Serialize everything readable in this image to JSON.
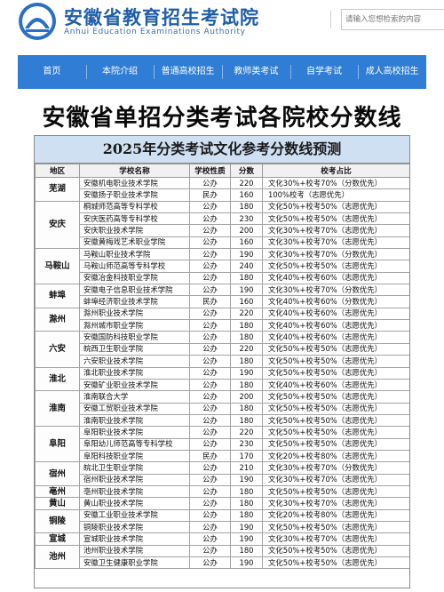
{
  "site": {
    "title": "安徽省教育招生考试院",
    "subtitle": "Anhui Education Examinations Authority",
    "search_placeholder": "请输入您想检索的内容"
  },
  "nav": [
    "首页",
    "本院介绍",
    "普通高校招生",
    "教师类考试",
    "自学考试",
    "成人高校招生"
  ],
  "headline": "安徽省单招分类考试各院校分数线",
  "table": {
    "title": "2025年分类考试文化参考分数线预测",
    "headers": [
      "地区",
      "学校名称",
      "学校性质",
      "分数",
      "校考占比"
    ],
    "regions": [
      {
        "name": "芜湖",
        "rows": [
          [
            "安徽机电职业技术学院",
            "公办",
            "220",
            "文化30%+校考70%（分数优先）"
          ],
          [
            "安徽扬子职业技术学院",
            "民办",
            "160",
            "100%校考（志愿优先）"
          ]
        ]
      },
      {
        "name": "安庆",
        "rows": [
          [
            "桐城师范高等专科学校",
            "公办",
            "180",
            "文化50%+校考50%（志愿优先）"
          ],
          [
            "安庆医药高等专科学校",
            "公办",
            "230",
            "文化50%+校考50%（志愿优先）"
          ],
          [
            "安庆职业技术学院",
            "公办",
            "200",
            "文化30%+校考70%（志愿优先）"
          ],
          [
            "安徽黄梅戏艺术职业学院",
            "公办",
            "160",
            "文化30%+校考70%（志愿优先）"
          ]
        ]
      },
      {
        "name": "马鞍山",
        "rows": [
          [
            "马鞍山职业技术学院",
            "公办",
            "190",
            "文化30%+校考70%（分数优先）"
          ],
          [
            "马鞍山师范高等专科学校",
            "公办",
            "240",
            "文化50%+校考50%（志愿优先）"
          ],
          [
            "安徽冶金科技职业学院",
            "公办",
            "180",
            "文化40%+校考60%（志愿优先）"
          ]
        ]
      },
      {
        "name": "蚌埠",
        "rows": [
          [
            "安徽电子信息职业技术学院",
            "公办",
            "190",
            "文化30%+校考70%（分数优先）"
          ],
          [
            "蚌埠经济职业技术学院",
            "民办",
            "160",
            "文化40%+校考60%（分数优先）"
          ]
        ]
      },
      {
        "name": "滁州",
        "rows": [
          [
            "滁州职业技术学院",
            "公办",
            "220",
            "文化40%+校考60%（志愿优先）"
          ],
          [
            "滁州城市职业学院",
            "公办",
            "180",
            "文化40%+校考60%（志愿优先）"
          ]
        ]
      },
      {
        "name": "六安",
        "rows": [
          [
            "安徽国防科技职业学院",
            "公办",
            "180",
            "文化40%+校考60%（志愿优先）"
          ],
          [
            "皖西卫生职业学院",
            "公办",
            "220",
            "文化50%+校考50%（志愿优先）"
          ],
          [
            "六安职业技术学院",
            "公办",
            "180",
            "文化50%+校考50%（志愿优先）"
          ]
        ]
      },
      {
        "name": "淮北",
        "rows": [
          [
            "淮北职业技术学院",
            "公办",
            "190",
            "文化50%+校考50%（志愿优先）"
          ],
          [
            "安徽矿业职业技术学院",
            "公办",
            "180",
            "文化40%+校考60%（志愿优先）"
          ]
        ]
      },
      {
        "name": "淮南",
        "rows": [
          [
            "淮南联合大学",
            "公办",
            "200",
            "文化50%+校考50%（志愿优先）"
          ],
          [
            "安徽工贸职业技术学院",
            "公办",
            "180",
            "文化50%+校考50%（志愿优先）"
          ],
          [
            "淮南职业技术学院",
            "公办",
            "180",
            "文化50%+校考50%（志愿优先）"
          ]
        ]
      },
      {
        "name": "阜阳",
        "rows": [
          [
            "阜阳职业技术学院",
            "公办",
            "220",
            "文化50%+校考50%（志愿优先）"
          ],
          [
            "阜阳幼儿师范高等专科学校",
            "公办",
            "230",
            "文化50%+校考50%（志愿优先）"
          ],
          [
            "阜阳科技职业学院",
            "民办",
            "170",
            "文化20%+校考80%（志愿优先）"
          ]
        ]
      },
      {
        "name": "宿州",
        "rows": [
          [
            "皖北卫生职业学院",
            "公办",
            "210",
            "文化30%+校考70%（分数优先）"
          ],
          [
            "宿州职业技术学院",
            "公办",
            "190",
            "文化30%+校考70%（志愿优先）"
          ]
        ]
      },
      {
        "name": "亳州",
        "rows": [
          [
            "亳州职业技术学院",
            "公办",
            "180",
            "文化50%+校考50%（志愿优先）"
          ]
        ]
      },
      {
        "name": "黄山",
        "rows": [
          [
            "黄山职业技术学院",
            "公办",
            "180",
            "文化30%+校考70%（志愿优先）"
          ]
        ]
      },
      {
        "name": "铜陵",
        "rows": [
          [
            "安徽工业职业技术学院",
            "公办",
            "180",
            "文化20%+校考80%（志愿优先）"
          ],
          [
            "铜陵职业技术学院",
            "公办",
            "190",
            "文化50%+校考50%（志愿优先）"
          ]
        ]
      },
      {
        "name": "宣城",
        "rows": [
          [
            "宣城职业技术学院",
            "公办",
            "190",
            "文化30%+校考70%（志愿优先）"
          ]
        ]
      },
      {
        "name": "池州",
        "rows": [
          [
            "池州职业技术学院",
            "公办",
            "180",
            "文化50%+校考50%（志愿优先）"
          ],
          [
            "安徽卫生健康职业学院",
            "公办",
            "190",
            "文化50%+校考50%（志愿优先）"
          ]
        ]
      }
    ]
  },
  "colors": {
    "brand": "#1f5ea8",
    "nav_bg": "#2f7dd4",
    "table_title_bg": "#cfe0f3"
  }
}
